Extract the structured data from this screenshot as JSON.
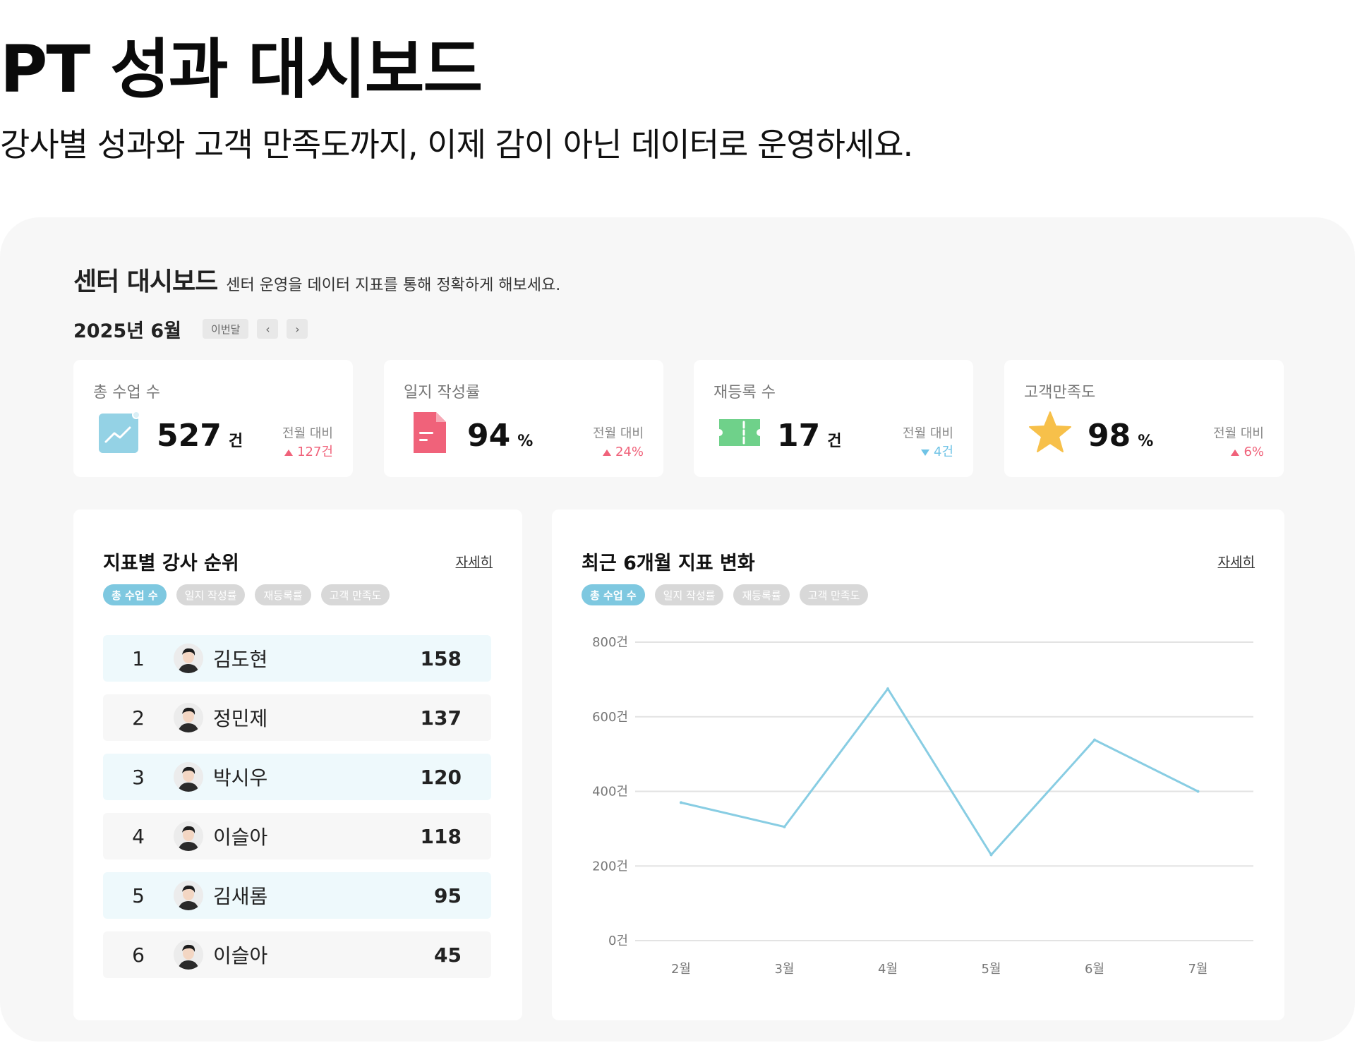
{
  "hero": {
    "title": "PT 성과 대시보드",
    "subtitle": "강사별 성과와 고객 만족도까지, 이제 감이 아닌 데이터로 운영하세요."
  },
  "dashboard": {
    "title": "센터 대시보드",
    "description": "센터 운영을 데이터 지표를 통해 정확하게 해보세요.",
    "month": "2025년 6월",
    "this_month_button": "이번달",
    "prev_icon": "‹",
    "next_icon": "›"
  },
  "kpis": [
    {
      "label": "총 수업 수",
      "value": "527",
      "unit": "건",
      "compare_label": "전월 대비",
      "delta": "127건",
      "direction": "up",
      "icon": "chart-icon",
      "color": "#7ec8e0"
    },
    {
      "label": "일지 작성률",
      "value": "94",
      "unit": "%",
      "compare_label": "전월 대비",
      "delta": "24%",
      "direction": "up",
      "icon": "document-icon",
      "color": "#f0627a"
    },
    {
      "label": "재등록 수",
      "value": "17",
      "unit": "건",
      "compare_label": "전월 대비",
      "delta": "4건",
      "direction": "down",
      "icon": "ticket-icon",
      "color": "#6fd18a"
    },
    {
      "label": "고객만족도",
      "value": "98",
      "unit": "%",
      "compare_label": "전월 대비",
      "delta": "6%",
      "direction": "up",
      "icon": "star-icon",
      "color": "#f7c04a"
    }
  ],
  "ranking": {
    "title": "지표별 강사 순위",
    "more": "자세히",
    "tabs": [
      "총 수업 수",
      "일지 작성률",
      "재등록률",
      "고객 만족도"
    ],
    "active_tab": 0,
    "rows": [
      {
        "rank": "1",
        "name": "김도현",
        "score": "158"
      },
      {
        "rank": "2",
        "name": "정민제",
        "score": "137"
      },
      {
        "rank": "3",
        "name": "박시우",
        "score": "120"
      },
      {
        "rank": "4",
        "name": "이슬아",
        "score": "118"
      },
      {
        "rank": "5",
        "name": "김새롬",
        "score": "95"
      },
      {
        "rank": "6",
        "name": "이슬아",
        "score": "45"
      }
    ]
  },
  "trend": {
    "title": "최근 6개월 지표 변화",
    "more": "자세히",
    "tabs": [
      "총 수업 수",
      "일지 작성률",
      "재등록률",
      "고객 만족도"
    ],
    "active_tab": 0
  },
  "chart_data": {
    "type": "line",
    "categories": [
      "2월",
      "3월",
      "4월",
      "5월",
      "6월",
      "7월"
    ],
    "values": [
      370,
      305,
      675,
      230,
      538,
      400
    ],
    "y_ticks": [
      "800건",
      "600건",
      "400건",
      "200건",
      "0건"
    ],
    "ylim": [
      0,
      800
    ],
    "grid": true,
    "line_color": "#88cde3"
  },
  "colors": {
    "accent": "#7ec8e0",
    "up": "#f0627a",
    "down": "#6fc3e6"
  }
}
